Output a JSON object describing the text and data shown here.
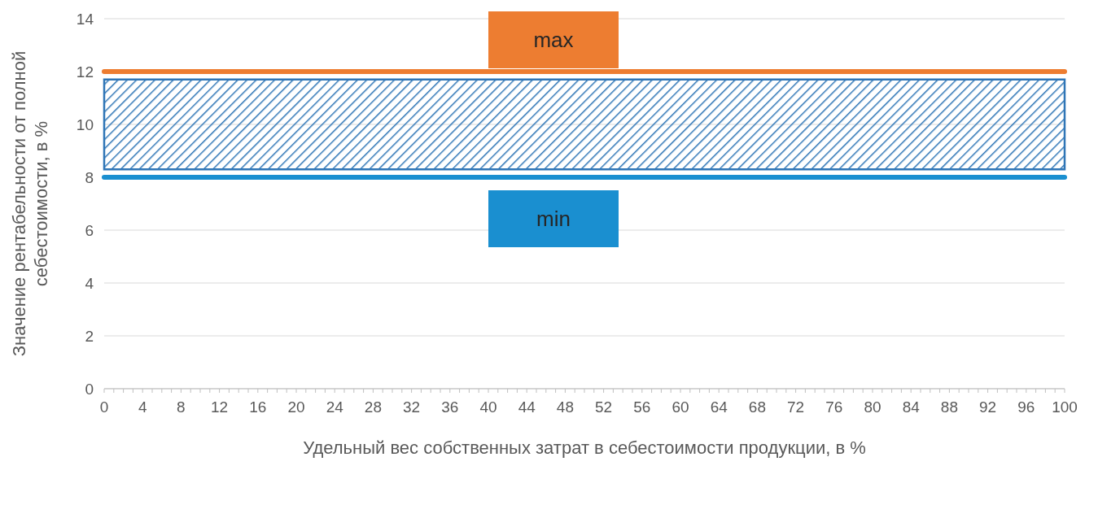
{
  "chart_data": {
    "type": "line",
    "xlabel": "Удельный вес собственных затрат в себестоимости продукции, в %",
    "ylabel": "Значение рентабельности от полной\nсебестоимости, в %",
    "xlim": [
      0,
      100
    ],
    "xticks": [
      0,
      {
        "value": 1,
        "label": null
      },
      {
        "value": 2,
        "label": null
      },
      {
        "value": 3,
        "label": null
      },
      4,
      {
        "value": 5,
        "label": null
      },
      {
        "value": 6,
        "label": null
      },
      {
        "value": 7,
        "label": null
      },
      8,
      {
        "value": 9,
        "label": null
      },
      {
        "value": 10,
        "label": null
      },
      {
        "value": 11,
        "label": null
      },
      12,
      {
        "value": 13,
        "label": null
      },
      {
        "value": 14,
        "label": null
      },
      {
        "value": 15,
        "label": null
      },
      16,
      {
        "value": 17,
        "label": null
      },
      {
        "value": 18,
        "label": null
      },
      {
        "value": 19,
        "label": null
      },
      20,
      {
        "value": 21,
        "label": null
      },
      {
        "value": 22,
        "label": null
      },
      {
        "value": 23,
        "label": null
      },
      24,
      {
        "value": 25,
        "label": null
      },
      {
        "value": 26,
        "label": null
      },
      {
        "value": 27,
        "label": null
      },
      28,
      {
        "value": 29,
        "label": null
      },
      {
        "value": 30,
        "label": null
      },
      {
        "value": 31,
        "label": null
      },
      32,
      {
        "value": 33,
        "label": null
      },
      {
        "value": 34,
        "label": null
      },
      {
        "value": 35,
        "label": null
      },
      36,
      {
        "value": 37,
        "label": null
      },
      {
        "value": 38,
        "label": null
      },
      {
        "value": 39,
        "label": null
      },
      40,
      {
        "value": 41,
        "label": null
      },
      {
        "value": 42,
        "label": null
      },
      {
        "value": 43,
        "label": null
      },
      44,
      {
        "value": 45,
        "label": null
      },
      {
        "value": 46,
        "label": null
      },
      {
        "value": 47,
        "label": null
      },
      48,
      {
        "value": 49,
        "label": null
      },
      {
        "value": 50,
        "label": null
      },
      {
        "value": 51,
        "label": null
      },
      52,
      {
        "value": 53,
        "label": null
      },
      {
        "value": 54,
        "label": null
      },
      {
        "value": 55,
        "label": null
      },
      56,
      {
        "value": 57,
        "label": null
      },
      {
        "value": 58,
        "label": null
      },
      {
        "value": 59,
        "label": null
      },
      60,
      {
        "value": 61,
        "label": null
      },
      {
        "value": 62,
        "label": null
      },
      {
        "value": 63,
        "label": null
      },
      64,
      {
        "value": 65,
        "label": null
      },
      {
        "value": 66,
        "label": null
      },
      {
        "value": 67,
        "label": null
      },
      68,
      {
        "value": 69,
        "label": null
      },
      {
        "value": 70,
        "label": null
      },
      {
        "value": 71,
        "label": null
      },
      72,
      {
        "value": 73,
        "label": null
      },
      {
        "value": 74,
        "label": null
      },
      {
        "value": 75,
        "label": null
      },
      76,
      {
        "value": 77,
        "label": null
      },
      {
        "value": 78,
        "label": null
      },
      {
        "value": 79,
        "label": null
      },
      80,
      {
        "value": 81,
        "label": null
      },
      {
        "value": 82,
        "label": null
      },
      {
        "value": 83,
        "label": null
      },
      84,
      {
        "value": 85,
        "label": null
      },
      {
        "value": 86,
        "label": null
      },
      {
        "value": 87,
        "label": null
      },
      88,
      {
        "value": 89,
        "label": null
      },
      {
        "value": 90,
        "label": null
      },
      {
        "value": 91,
        "label": null
      },
      92,
      {
        "value": 93,
        "label": null
      },
      {
        "value": 94,
        "label": null
      },
      {
        "value": 95,
        "label": null
      },
      96,
      {
        "value": 97,
        "label": null
      },
      {
        "value": 98,
        "label": null
      },
      {
        "value": 99,
        "label": null
      },
      100
    ],
    "ylim": [
      0,
      14
    ],
    "yticks": [
      0,
      2,
      4,
      6,
      8,
      10,
      12,
      14
    ],
    "grid": "y",
    "ref_lines": [
      {
        "axis": "y",
        "value": 12,
        "label": "max",
        "color": "#ed7d31"
      },
      {
        "axis": "y",
        "value": 8,
        "label": "min",
        "color": "#1a8fd0"
      }
    ],
    "bands": [
      {
        "axis": "y",
        "from": 8.3,
        "to": 11.7,
        "color": "#2e75b6"
      }
    ]
  }
}
